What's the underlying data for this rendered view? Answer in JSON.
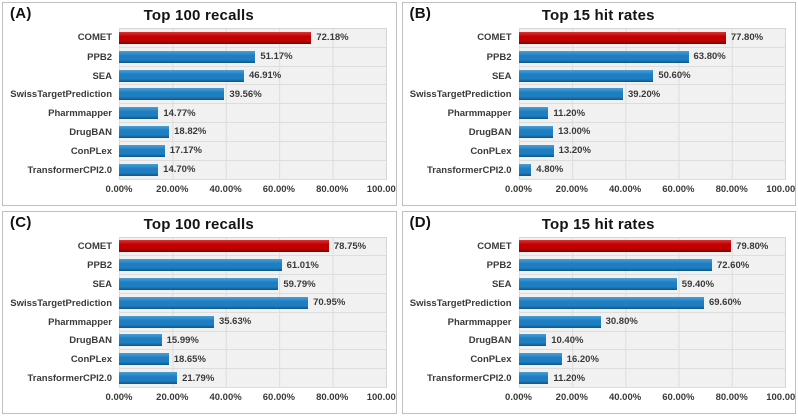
{
  "figure": {
    "background": "#FFFFFF",
    "panel_border": "#BFBFBF",
    "colors": {
      "highlight_bar": "#C00000",
      "default_bar": "#1F7EC2",
      "plot_background": "#F1F1F1",
      "gridline": "#DDDDDD",
      "label_text": "#3A3A3A"
    }
  },
  "chart_data": [
    {
      "type": "bar",
      "orientation": "horizontal",
      "panel": "(A)",
      "title": "Top 100 recalls",
      "categories": [
        "COMET",
        "PPB2",
        "SEA",
        "SwissTargetPrediction",
        "Pharmmapper",
        "DrugBAN",
        "ConPLex",
        "TransformerCPI2.0"
      ],
      "values": [
        72.18,
        51.17,
        46.91,
        39.56,
        14.77,
        18.82,
        17.17,
        14.7
      ],
      "value_labels": [
        "72.18%",
        "51.17%",
        "46.91%",
        "39.56%",
        "14.77%",
        "18.82%",
        "17.17%",
        "14.70%"
      ],
      "xlim": [
        0,
        100
      ],
      "xticks": [
        "0.00%",
        "20.00%",
        "40.00%",
        "60.00%",
        "80.00%",
        "100.00%"
      ],
      "highlight_category": "COMET",
      "grid": true,
      "legend": false
    },
    {
      "type": "bar",
      "orientation": "horizontal",
      "panel": "(B)",
      "title": "Top 15 hit rates",
      "categories": [
        "COMET",
        "PPB2",
        "SEA",
        "SwissTargetPrediction",
        "Pharmmapper",
        "DrugBAN",
        "ConPLex",
        "TransformerCPI2.0"
      ],
      "values": [
        77.8,
        63.8,
        50.6,
        39.2,
        11.2,
        13.0,
        13.2,
        4.8
      ],
      "value_labels": [
        "77.80%",
        "63.80%",
        "50.60%",
        "39.20%",
        "11.20%",
        "13.00%",
        "13.20%",
        "4.80%"
      ],
      "xlim": [
        0,
        100
      ],
      "xticks": [
        "0.00%",
        "20.00%",
        "40.00%",
        "60.00%",
        "80.00%",
        "100.00%"
      ],
      "highlight_category": "COMET",
      "grid": true,
      "legend": false
    },
    {
      "type": "bar",
      "orientation": "horizontal",
      "panel": "(C)",
      "title": "Top 100 recalls",
      "categories": [
        "COMET",
        "PPB2",
        "SEA",
        "SwissTargetPrediction",
        "Pharmmapper",
        "DrugBAN",
        "ConPLex",
        "TransformerCPI2.0"
      ],
      "values": [
        78.75,
        61.01,
        59.79,
        70.95,
        35.63,
        15.99,
        18.65,
        21.79
      ],
      "value_labels": [
        "78.75%",
        "61.01%",
        "59.79%",
        "70.95%",
        "35.63%",
        "15.99%",
        "18.65%",
        "21.79%"
      ],
      "xlim": [
        0,
        100
      ],
      "xticks": [
        "0.00%",
        "20.00%",
        "40.00%",
        "60.00%",
        "80.00%",
        "100.00%"
      ],
      "highlight_category": "COMET",
      "grid": true,
      "legend": false
    },
    {
      "type": "bar",
      "orientation": "horizontal",
      "panel": "(D)",
      "title": "Top 15 hit rates",
      "categories": [
        "COMET",
        "PPB2",
        "SEA",
        "SwissTargetPrediction",
        "Pharmmapper",
        "DrugBAN",
        "ConPLex",
        "TransformerCPI2.0"
      ],
      "values": [
        79.8,
        72.6,
        59.4,
        69.6,
        30.8,
        10.4,
        16.2,
        11.2
      ],
      "value_labels": [
        "79.80%",
        "72.60%",
        "59.40%",
        "69.60%",
        "30.80%",
        "10.40%",
        "16.20%",
        "11.20%"
      ],
      "xlim": [
        0,
        100
      ],
      "xticks": [
        "0.00%",
        "20.00%",
        "40.00%",
        "60.00%",
        "80.00%",
        "100.00%"
      ],
      "highlight_category": "COMET",
      "grid": true,
      "legend": false
    }
  ]
}
